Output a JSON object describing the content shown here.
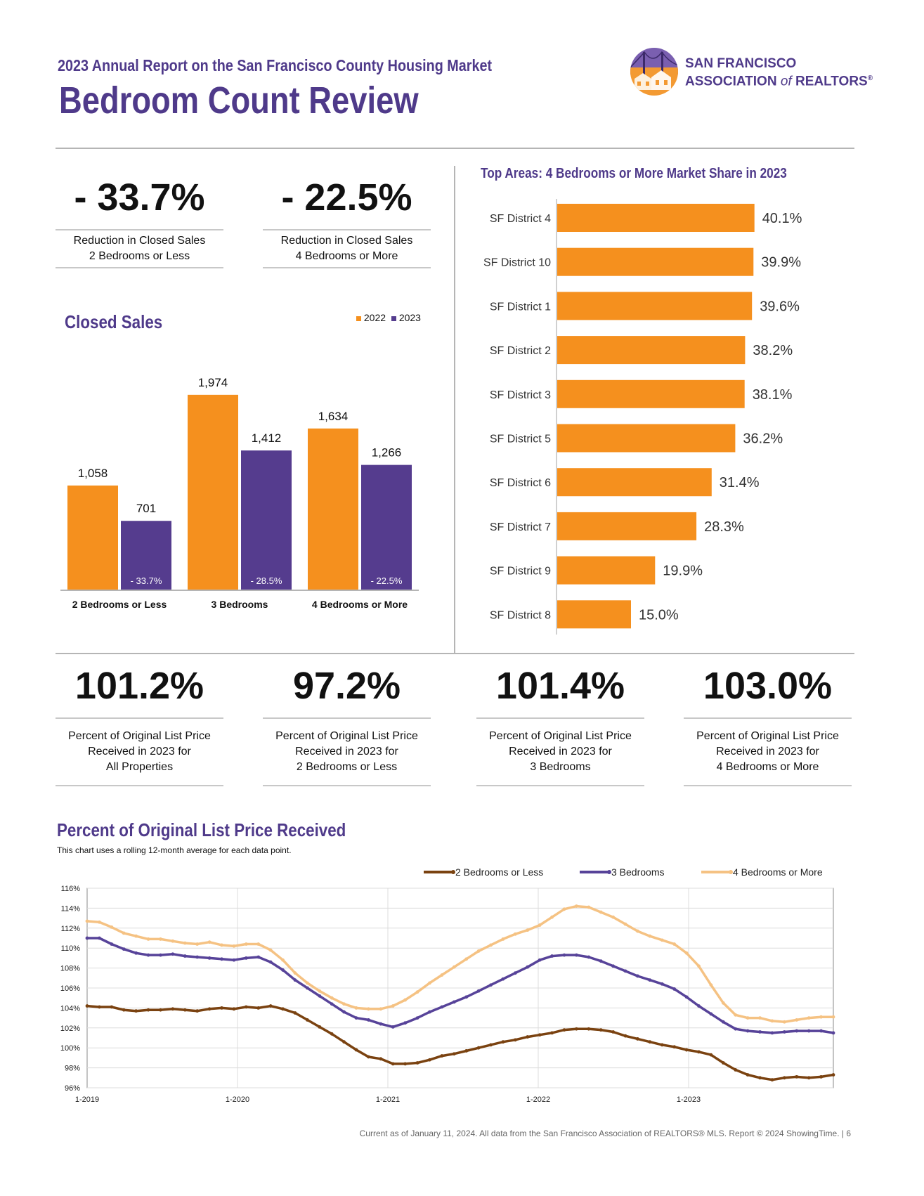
{
  "header": {
    "subtitle": "2023 Annual Report on the San Francisco County Housing Market",
    "title": "Bedroom Count Review",
    "logo_line1": "SAN FRANCISCO",
    "logo_line2": "ASSOCIATION",
    "logo_of": "of",
    "logo_line3": "REALTORS",
    "logo_reg": "®"
  },
  "kpis_top": [
    {
      "value": "- 33.7%",
      "label_line1": "Reduction in Closed Sales",
      "label_line2": "2 Bedrooms or Less"
    },
    {
      "value": "- 22.5%",
      "label_line1": "Reduction in Closed Sales",
      "label_line2": "4 Bedrooms or More"
    }
  ],
  "kpis_bottom": [
    {
      "value": "101.2%",
      "label_line1": "Percent of Original List Price",
      "label_line2": "Received in 2023 for",
      "label_line3": "All Properties"
    },
    {
      "value": "97.2%",
      "label_line1": "Percent of Original List Price",
      "label_line2": "Received in 2023 for",
      "label_line3": "2 Bedrooms or Less"
    },
    {
      "value": "101.4%",
      "label_line1": "Percent of Original List Price",
      "label_line2": "Received in 2023 for",
      "label_line3": "3 Bedrooms"
    },
    {
      "value": "103.0%",
      "label_line1": "Percent of Original List Price",
      "label_line2": "Received in 2023 for",
      "label_line3": "4 Bedrooms or More"
    }
  ],
  "colors": {
    "orange": "#f5901e",
    "purple": "#553c8e",
    "brown": "#7a4210",
    "mid_purple": "#574399",
    "light_orange": "#f5c283"
  },
  "chart_data": [
    {
      "type": "bar",
      "title": "Closed Sales",
      "categories": [
        "2 Bedrooms or Less",
        "3 Bedrooms",
        "4 Bedrooms or More"
      ],
      "series": [
        {
          "name": "2022",
          "values": [
            1058,
            1974,
            1634
          ],
          "labels": [
            "1,058",
            "1,974",
            "1,634"
          ]
        },
        {
          "name": "2023",
          "values": [
            701,
            1412,
            1266
          ],
          "labels": [
            "701",
            "1,412",
            "1,266"
          ]
        }
      ],
      "changes": [
        "- 33.7%",
        "- 28.5%",
        "- 22.5%"
      ],
      "ylim": [
        0,
        2200
      ],
      "legend_position": "top-right"
    },
    {
      "type": "bar",
      "orientation": "horizontal",
      "title": "Top Areas: 4 Bedrooms or More Market Share in 2023",
      "categories": [
        "SF District 4",
        "SF District 10",
        "SF District 1",
        "SF District 2",
        "SF District 3",
        "SF District 5",
        "SF District 6",
        "SF District 7",
        "SF District 9",
        "SF District 8"
      ],
      "values": [
        40.1,
        39.9,
        39.6,
        38.2,
        38.1,
        36.2,
        31.4,
        28.3,
        19.9,
        15.0
      ],
      "labels": [
        "40.1%",
        "39.9%",
        "39.6%",
        "38.2%",
        "38.1%",
        "36.2%",
        "31.4%",
        "28.3%",
        "19.9%",
        "15.0%"
      ],
      "xlim": [
        0,
        50
      ]
    },
    {
      "type": "line",
      "title": "Percent of Original List Price Received",
      "subtitle": "This chart uses a rolling 12-month average for each data point.",
      "x_start": "1-2019",
      "x_ticks": [
        "1-2019",
        "1-2020",
        "1-2021",
        "1-2022",
        "1-2023"
      ],
      "y_ticks": [
        "116%",
        "114%",
        "112%",
        "110%",
        "108%",
        "106%",
        "104%",
        "102%",
        "100%",
        "98%",
        "96%"
      ],
      "ylim": [
        96,
        116
      ],
      "legend_position": "top-right",
      "series": [
        {
          "name": "2 Bedrooms or Less",
          "values": [
            104.2,
            104.1,
            104.1,
            103.8,
            103.7,
            103.8,
            103.8,
            103.9,
            103.8,
            103.7,
            103.9,
            104.0,
            103.9,
            104.1,
            104.0,
            104.2,
            103.9,
            103.5,
            102.8,
            102.1,
            101.4,
            100.6,
            99.8,
            99.1,
            98.9,
            98.4,
            98.4,
            98.5,
            98.8,
            99.2,
            99.4,
            99.7,
            100.0,
            100.3,
            100.6,
            100.8,
            101.1,
            101.3,
            101.5,
            101.8,
            101.9,
            101.9,
            101.8,
            101.6,
            101.2,
            100.9,
            100.6,
            100.3,
            100.1,
            99.8,
            99.6,
            99.3,
            98.5,
            97.8,
            97.3,
            97.0,
            96.8,
            97.0,
            97.1,
            97.0,
            97.1,
            97.3
          ]
        },
        {
          "name": "3 Bedrooms",
          "values": [
            111.0,
            111.0,
            110.4,
            109.9,
            109.5,
            109.3,
            109.3,
            109.4,
            109.2,
            109.1,
            109.0,
            108.9,
            108.8,
            109.0,
            109.1,
            108.6,
            107.8,
            106.8,
            106.0,
            105.2,
            104.4,
            103.6,
            103.0,
            102.8,
            102.4,
            102.1,
            102.5,
            103.0,
            103.6,
            104.1,
            104.6,
            105.1,
            105.7,
            106.3,
            106.9,
            107.5,
            108.1,
            108.8,
            109.2,
            109.3,
            109.3,
            109.1,
            108.7,
            108.2,
            107.7,
            107.2,
            106.8,
            106.4,
            105.9,
            105.1,
            104.2,
            103.4,
            102.6,
            101.9,
            101.7,
            101.6,
            101.5,
            101.6,
            101.7,
            101.7,
            101.7,
            101.5
          ]
        },
        {
          "name": "4 Bedrooms or More",
          "values": [
            112.7,
            112.6,
            112.1,
            111.5,
            111.2,
            110.9,
            110.9,
            110.7,
            110.5,
            110.4,
            110.6,
            110.3,
            110.2,
            110.4,
            110.4,
            109.8,
            108.8,
            107.5,
            106.5,
            105.7,
            105.0,
            104.4,
            104.0,
            103.9,
            103.9,
            104.2,
            104.8,
            105.6,
            106.5,
            107.3,
            108.1,
            108.9,
            109.7,
            110.3,
            110.9,
            111.4,
            111.8,
            112.3,
            113.1,
            113.9,
            114.2,
            114.1,
            113.6,
            113.1,
            112.4,
            111.7,
            111.2,
            110.8,
            110.4,
            109.5,
            108.2,
            106.3,
            104.5,
            103.3,
            103.0,
            103.0,
            102.7,
            102.6,
            102.8,
            103.0,
            103.1,
            103.1
          ]
        }
      ]
    }
  ],
  "footer": "Current as of January 11, 2024. All data from the San Francisco Association of REALTORS® MLS. Report © 2024 ShowingTime.  |  6"
}
